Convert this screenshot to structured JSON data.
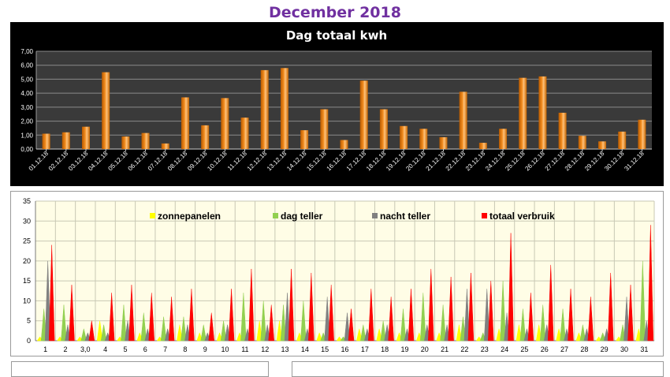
{
  "page_title": "December 2018",
  "chart_data": [
    {
      "type": "bar",
      "title": "Dag totaal kwh",
      "xlabel": "",
      "ylabel": "",
      "ylim": [
        0,
        7
      ],
      "y_ticks": [
        "0,00",
        "1,00",
        "2,00",
        "3,00",
        "4,00",
        "5,00",
        "6,00",
        "7,00"
      ],
      "grid": true,
      "background": "black",
      "bar_color": "#f28c1e",
      "categories": [
        "01.12.18",
        "02.12.18",
        "03.12.18",
        "04.12.18",
        "05.12.18",
        "06.12.18",
        "07.12.18",
        "08.12.18",
        "09.12.18",
        "10.12.18",
        "11.12.18",
        "12.12.18",
        "13.12.18",
        "14.12.18",
        "15.12.18",
        "16.12.18",
        "17.12.18",
        "18.12.18",
        "19.12.18",
        "20.12.18",
        "21.12.18",
        "22.12.18",
        "23.12.18",
        "24.12.18",
        "25.12.18",
        "26.12.18",
        "27.12.18",
        "28.12.18",
        "29.12.18",
        "30.12.18",
        "31.12.18"
      ],
      "values": [
        1.1,
        1.2,
        1.6,
        5.5,
        0.9,
        1.15,
        0.4,
        3.7,
        1.7,
        3.65,
        2.25,
        5.65,
        5.8,
        1.35,
        2.85,
        0.65,
        4.9,
        2.85,
        1.65,
        1.45,
        0.85,
        4.1,
        0.45,
        1.45,
        5.1,
        5.2,
        2.6,
        0.95,
        0.55,
        1.25,
        2.1
      ]
    },
    {
      "type": "bar",
      "ylim": [
        0,
        35
      ],
      "y_ticks": [
        "0",
        "5",
        "10",
        "15",
        "20",
        "25",
        "30",
        "35"
      ],
      "grid": true,
      "background": "#fffde6",
      "legend_placement": "top",
      "categories": [
        "1",
        "2",
        "3,0",
        "4",
        "5",
        "6",
        "7",
        "8",
        "9",
        "10",
        "11",
        "12",
        "13",
        "14",
        "15",
        "16",
        "17",
        "18",
        "19",
        "20",
        "21",
        "22",
        "23",
        "24",
        "25",
        "26",
        "27",
        "28",
        "29",
        "30",
        "31"
      ],
      "series": [
        {
          "name": "zonnepanelen",
          "color": "#ffff00",
          "values": [
            1,
            1,
            1,
            5,
            1,
            2,
            1,
            4,
            2,
            2,
            2,
            5,
            5,
            2,
            2,
            1,
            3,
            3,
            2,
            2,
            2,
            4,
            1,
            3,
            4,
            4,
            3,
            2,
            1,
            1,
            3
          ]
        },
        {
          "name": "dag teller",
          "color": "#92d050",
          "values": [
            8,
            9,
            3,
            4,
            9,
            7,
            6,
            6,
            4,
            5,
            12,
            10,
            9,
            10,
            2,
            1,
            4,
            5,
            8,
            12,
            9,
            6,
            2,
            15,
            8,
            9,
            8,
            4,
            2,
            4,
            20
          ]
        },
        {
          "name": "nacht teller",
          "color": "#808080",
          "values": [
            20,
            4,
            2,
            2,
            5,
            3,
            3,
            4,
            2,
            4,
            3,
            4,
            12,
            3,
            11,
            7,
            3,
            4,
            3,
            4,
            4,
            13,
            13,
            7,
            3,
            4,
            3,
            3,
            3,
            11,
            5
          ]
        },
        {
          "name": "totaal verbruik",
          "color": "#ff0000",
          "values": [
            24,
            14,
            5,
            12,
            14,
            12,
            11,
            13,
            7,
            13,
            18,
            9,
            18,
            17,
            14,
            8,
            13,
            11,
            13,
            18,
            16,
            17,
            15,
            27,
            12,
            19,
            13,
            11,
            17,
            14,
            29
          ]
        }
      ]
    }
  ]
}
